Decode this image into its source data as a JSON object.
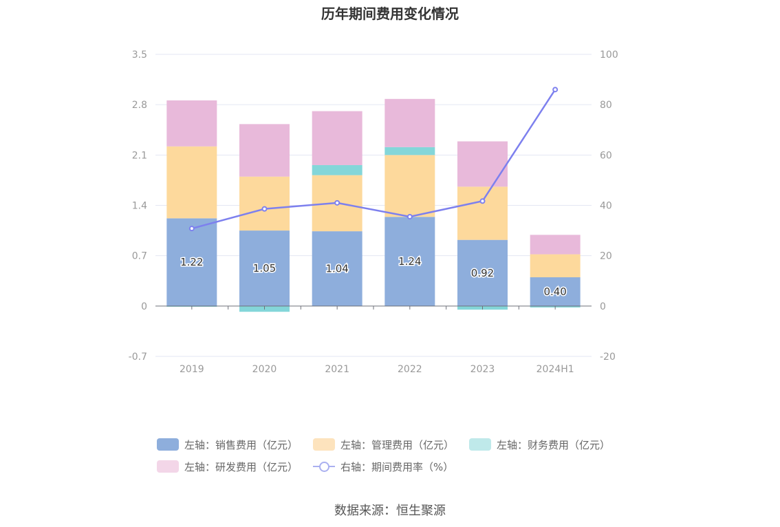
{
  "chart_data": {
    "type": "bar",
    "title": "历年期间费用变化情况",
    "categories": [
      "2019",
      "2020",
      "2021",
      "2022",
      "2023",
      "2024H1"
    ],
    "left_axis": {
      "ticks": [
        "3.5",
        "2.8",
        "2.1",
        "1.4",
        "0.7",
        "0",
        "-0.7"
      ],
      "ylim": [
        -0.7,
        3.5
      ]
    },
    "right_axis": {
      "ticks": [
        "100",
        "80",
        "60",
        "40",
        "20",
        "0",
        "-20"
      ],
      "ylim": [
        -20,
        100
      ]
    },
    "stacked_series": [
      {
        "name": "左轴：销售费用（亿元）",
        "color": "#8eaedc",
        "values": [
          1.22,
          1.05,
          1.04,
          1.24,
          0.92,
          0.4
        ],
        "labels": [
          "1.22",
          "1.05",
          "1.04",
          "1.24",
          "0.92",
          "0.40"
        ]
      },
      {
        "name": "左轴：管理费用（亿元）",
        "color": "#fdd99c",
        "values": [
          1.0,
          0.75,
          0.78,
          0.86,
          0.74,
          0.32
        ]
      },
      {
        "name": "左轴：财务费用（亿元）",
        "color": "#84d6d9",
        "values": [
          -0.01,
          -0.08,
          0.14,
          0.11,
          -0.05,
          -0.02
        ]
      },
      {
        "name": "左轴：研发费用（亿元）",
        "color": "#e8b9da",
        "values": [
          0.64,
          0.73,
          0.75,
          0.67,
          0.63,
          0.27
        ]
      }
    ],
    "line_series": {
      "name": "右轴：期间费用率（%）",
      "color": "#7d80ee",
      "values": [
        30.8,
        38.6,
        41.0,
        35.5,
        41.7,
        86.0
      ]
    },
    "legend_position": "bottom",
    "grid": true
  },
  "legend_colors": {
    "sales": "#8eaedc",
    "mgmt": "#fde3bd",
    "finance": "#bfe9ea",
    "rnd": "#f3d6e8"
  },
  "source": "数据来源：恒生聚源"
}
